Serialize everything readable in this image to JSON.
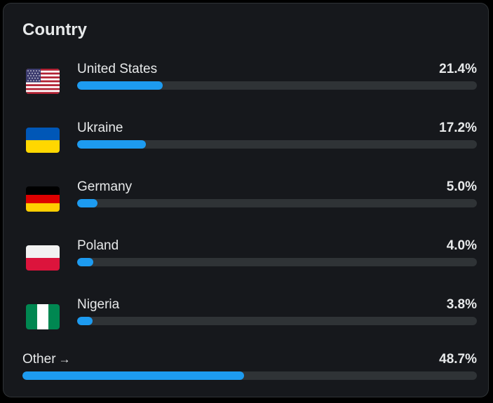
{
  "card": {
    "title": "Country",
    "countries": [
      {
        "name": "United States",
        "percent_text": "21.4%",
        "percent": 21.4,
        "flag": "us-flag-icon"
      },
      {
        "name": "Ukraine",
        "percent_text": "17.2%",
        "percent": 17.2,
        "flag": "ukraine-flag-icon"
      },
      {
        "name": "Germany",
        "percent_text": "5.0%",
        "percent": 5.0,
        "flag": "germany-flag-icon"
      },
      {
        "name": "Poland",
        "percent_text": "4.0%",
        "percent": 4.0,
        "flag": "poland-flag-icon"
      },
      {
        "name": "Nigeria",
        "percent_text": "3.8%",
        "percent": 3.8,
        "flag": "nigeria-flag-icon"
      }
    ],
    "other": {
      "label": "Other",
      "arrow": "→",
      "percent_text": "48.7%",
      "percent": 48.7
    }
  },
  "colors": {
    "card_bg": "#16181c",
    "track": "#2f3336",
    "bar_fill": "#1d9bf0",
    "text": "#e7e9ea"
  }
}
